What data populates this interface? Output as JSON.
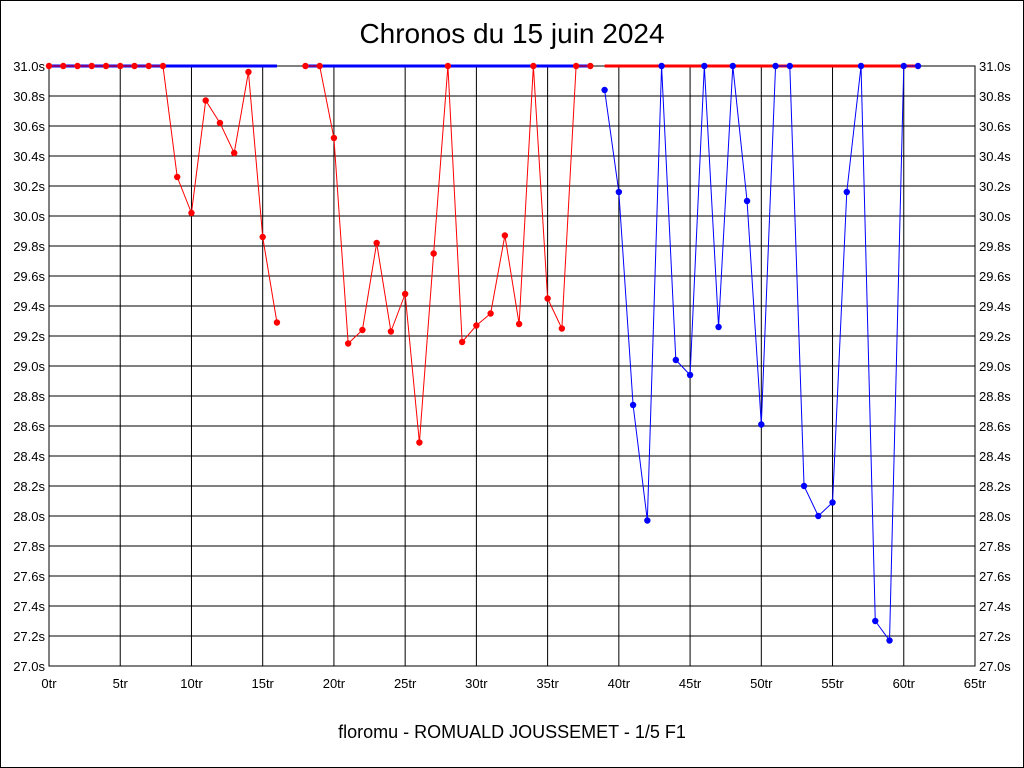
{
  "chart_data": {
    "type": "line",
    "title": "Chronos du 15 juin 2024",
    "footer": "floromu - ROMUALD JOUSSEMET - 1/5 F1",
    "xlim": [
      0,
      65
    ],
    "ylim": [
      27.0,
      31.0
    ],
    "x_ticks": [
      0,
      5,
      10,
      15,
      20,
      25,
      30,
      35,
      40,
      45,
      50,
      55,
      60,
      65
    ],
    "x_tick_labels": [
      "0tr",
      "5tr",
      "10tr",
      "15tr",
      "20tr",
      "25tr",
      "30tr",
      "35tr",
      "40tr",
      "45tr",
      "50tr",
      "55tr",
      "60tr",
      "65tr"
    ],
    "y_ticks": [
      27.0,
      27.2,
      27.4,
      27.6,
      27.8,
      28.0,
      28.2,
      28.4,
      28.6,
      28.8,
      29.0,
      29.2,
      29.4,
      29.6,
      29.8,
      30.0,
      30.2,
      30.4,
      30.6,
      30.8,
      31.0
    ],
    "y_tick_labels": [
      "27.0s",
      "27.2s",
      "27.4s",
      "27.6s",
      "27.8s",
      "28.0s",
      "28.2s",
      "28.4s",
      "28.6s",
      "28.8s",
      "29.0s",
      "29.2s",
      "29.4s",
      "29.6s",
      "29.8s",
      "30.0s",
      "30.2s",
      "30.4s",
      "30.6s",
      "30.8s",
      "31.0s"
    ],
    "grid": true,
    "series": [
      {
        "color": "#ff0000",
        "segments": [
          [
            [
              0,
              31.0
            ],
            [
              1,
              31.0
            ],
            [
              2,
              31.0
            ],
            [
              3,
              31.0
            ],
            [
              4,
              31.0
            ],
            [
              5,
              31.0
            ],
            [
              6,
              31.0
            ],
            [
              7,
              31.0
            ],
            [
              8,
              31.0
            ],
            [
              9,
              30.26
            ],
            [
              10,
              30.02
            ],
            [
              11,
              30.77
            ],
            [
              12,
              30.62
            ],
            [
              13,
              30.42
            ],
            [
              14,
              30.96
            ],
            [
              15,
              29.86
            ],
            [
              16,
              29.29
            ]
          ],
          [
            [
              18,
              31.0
            ],
            [
              19,
              31.0
            ],
            [
              20,
              30.52
            ],
            [
              21,
              29.15
            ],
            [
              22,
              29.24
            ],
            [
              23,
              29.82
            ],
            [
              24,
              29.23
            ],
            [
              25,
              29.48
            ],
            [
              26,
              28.49
            ],
            [
              27,
              29.75
            ],
            [
              28,
              31.0
            ],
            [
              29,
              29.16
            ],
            [
              30,
              29.27
            ],
            [
              31,
              29.35
            ],
            [
              32,
              29.87
            ],
            [
              33,
              29.28
            ],
            [
              34,
              31.0
            ],
            [
              35,
              29.45
            ],
            [
              36,
              29.25
            ],
            [
              37,
              31.0
            ],
            [
              38,
              31.0
            ]
          ]
        ]
      },
      {
        "color": "#0000ff",
        "segments": [
          [
            [
              39,
              30.84
            ],
            [
              40,
              30.16
            ],
            [
              41,
              28.74
            ],
            [
              42,
              27.97
            ],
            [
              43,
              31.0
            ],
            [
              44,
              29.04
            ],
            [
              45,
              28.94
            ],
            [
              46,
              31.0
            ],
            [
              47,
              29.26
            ],
            [
              48,
              31.0
            ],
            [
              49,
              30.1
            ],
            [
              50,
              28.61
            ],
            [
              51,
              31.0
            ],
            [
              52,
              31.0
            ],
            [
              53,
              28.2
            ],
            [
              54,
              28.0
            ],
            [
              55,
              28.09
            ],
            [
              56,
              30.16
            ],
            [
              57,
              31.0
            ],
            [
              58,
              27.3
            ],
            [
              59,
              27.17
            ],
            [
              60,
              31.0
            ],
            [
              61,
              31.0
            ]
          ]
        ]
      }
    ],
    "top_bars": [
      {
        "color": "#0000ff",
        "x": [
          0,
          16
        ]
      },
      {
        "color": "#0000ff",
        "x": [
          18,
          38
        ]
      },
      {
        "color": "#ff0000",
        "x": [
          39,
          61
        ]
      }
    ]
  }
}
